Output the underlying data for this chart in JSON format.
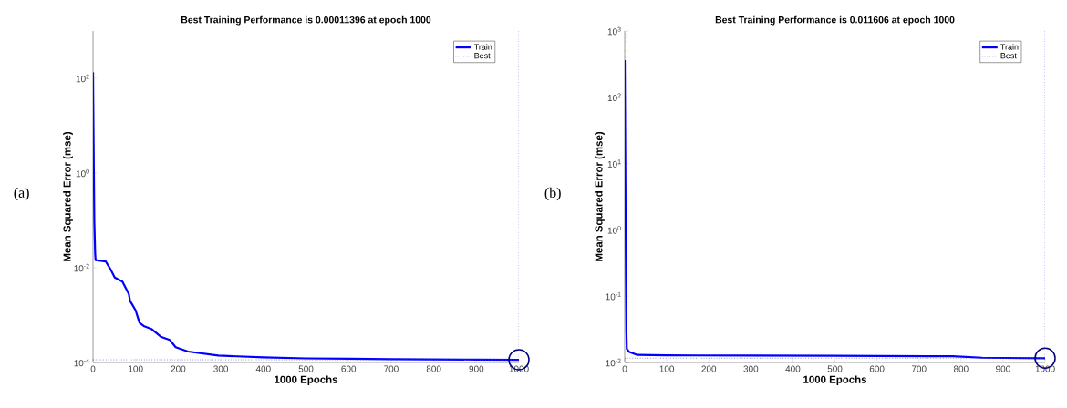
{
  "chart_data": [
    {
      "type": "line",
      "title": "Best Training Performance is 0.00011396 at epoch 1000",
      "xlabel": "1000 Epochs",
      "ylabel": "Mean Squared Error  (mse)",
      "log": "y",
      "legend": "top right",
      "annotations": [
        "(a)"
      ],
      "xlim": [
        0,
        1000
      ],
      "xticks": [
        0,
        100,
        200,
        300,
        400,
        500,
        600,
        700,
        800,
        900,
        1000
      ],
      "ylim": [
        0.0001,
        1000
      ],
      "yticks": [
        {
          "value": 0.0001,
          "label": "10$^{-4}$"
        },
        {
          "value": 0.01,
          "label": "10$^{-2}$"
        },
        {
          "value": 1,
          "label": "10$^{0}$"
        },
        {
          "value": 100,
          "label": "10$^{2}$"
        }
      ],
      "ref_lines": [
        {
          "axis": "x",
          "value": 1000,
          "color": "#5555dd",
          "line_style": "dotted"
        }
      ],
      "series": [
        {
          "name": "Train",
          "color": "#0000ff",
          "x": [
            0,
            1,
            2,
            3,
            5,
            6,
            30,
            41,
            51,
            69,
            84,
            87,
            100,
            109,
            119,
            137,
            159,
            180,
            194,
            223,
            294,
            400,
            500,
            600,
            700,
            800,
            900,
            1000
          ],
          "values": [
            134,
            10,
            1,
            0.1,
            0.02,
            0.0145,
            0.0135,
            0.0093,
            0.0062,
            0.0051,
            0.0028,
            0.002,
            0.00126,
            0.00069,
            0.00059,
            0.00051,
            0.00035,
            0.0003,
            0.00021,
            0.00017,
            0.00014,
            0.000128,
            0.000122,
            0.00012,
            0.000117,
            0.000116,
            0.000115,
            0.00011396
          ]
        },
        {
          "name": "Best",
          "type": "line",
          "line_style": "dotted",
          "color": "#5555dd",
          "x": [
            0,
            1000
          ],
          "values": [
            0.00011396,
            0.00011396
          ]
        },
        {
          "type": "scatter",
          "marker": "circle",
          "color": "#000080",
          "x": [
            1000
          ],
          "values": [
            0.00011396
          ]
        }
      ]
    },
    {
      "type": "line",
      "title": "Best Training Performance is 0.011606 at epoch 1000",
      "xlabel": "1000 Epochs",
      "ylabel": "Mean Squared Error  (mse)",
      "log": "y",
      "legend": "top right",
      "annotations": [
        "(b)"
      ],
      "xlim": [
        0,
        1000
      ],
      "xticks": [
        0,
        100,
        200,
        300,
        400,
        500,
        600,
        700,
        800,
        900,
        1000
      ],
      "ylim": [
        0.01,
        1000
      ],
      "yticks": [
        {
          "value": 0.01,
          "label": "10$^{-2}$"
        },
        {
          "value": 0.1,
          "label": "10$^{-1}$"
        },
        {
          "value": 1,
          "label": "10$^{0}$"
        },
        {
          "value": 10,
          "label": "10$^{1}$"
        },
        {
          "value": 100,
          "label": "10$^{2}$"
        },
        {
          "value": 1000,
          "label": "10$^{3}$"
        }
      ],
      "ref_lines": [
        {
          "axis": "x",
          "value": 1000,
          "color": "#5555dd",
          "line_style": "dotted"
        }
      ],
      "series": [
        {
          "name": "Train",
          "color": "#0000ff",
          "x": [
            0,
            1,
            2,
            3,
            4,
            5,
            10,
            30,
            100,
            300,
            500,
            780,
            850,
            900,
            1000
          ],
          "values": [
            363,
            30,
            2,
            0.2,
            0.03,
            0.016,
            0.0145,
            0.013,
            0.0128,
            0.0127,
            0.0126,
            0.0124,
            0.0118,
            0.0117,
            0.011606
          ]
        },
        {
          "name": "Best",
          "type": "line",
          "line_style": "dotted",
          "color": "#5555dd",
          "x": [
            0,
            1000
          ],
          "values": [
            0.011606,
            0.011606
          ]
        },
        {
          "type": "scatter",
          "marker": "circle",
          "color": "#000080",
          "x": [
            1000
          ],
          "values": [
            0.011606
          ]
        }
      ]
    }
  ]
}
